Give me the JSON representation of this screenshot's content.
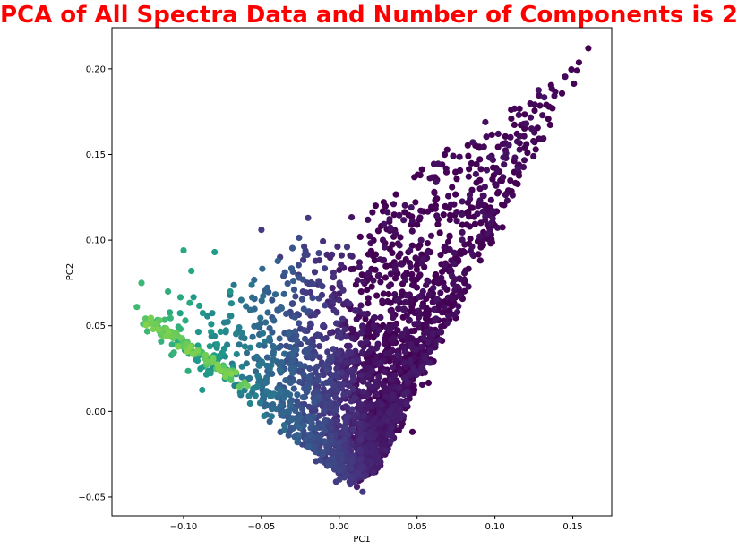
{
  "chart_data": {
    "type": "scatter",
    "title": "PCA of All Spectra Data and Number of Components is 2",
    "title_color": "#ff0000",
    "xlabel": "PC1",
    "ylabel": "PC2",
    "xlim": [
      -0.146,
      0.175
    ],
    "ylim": [
      -0.061,
      0.224
    ],
    "xticks": [
      -0.1,
      -0.05,
      0.0,
      0.05,
      0.1,
      0.15
    ],
    "xtick_labels": [
      "−0.10",
      "−0.05",
      "0.00",
      "0.05",
      "0.10",
      "0.15"
    ],
    "yticks": [
      -0.05,
      0.0,
      0.05,
      0.1,
      0.15,
      0.2
    ],
    "ytick_labels": [
      "−0.05",
      "0.00",
      "0.05",
      "0.10",
      "0.15",
      "0.20"
    ],
    "grid": false,
    "colormap": "viridis",
    "colormap_stops": [
      "#440154",
      "#46327e",
      "#365c8d",
      "#277f8e",
      "#1fa187",
      "#4ac16d",
      "#a0da39"
    ],
    "point_count": 2600,
    "boundary": {
      "apex": [
        0.015,
        -0.047
      ],
      "left_tip": [
        -0.13,
        0.058
      ],
      "right_tip": [
        0.16,
        0.212
      ]
    },
    "sample_points": [
      [
        -0.13,
        0.061
      ],
      [
        -0.127,
        0.075
      ],
      [
        -0.11,
        0.07
      ],
      [
        -0.1,
        0.094
      ],
      [
        -0.095,
        0.082
      ],
      [
        -0.08,
        0.093
      ],
      [
        -0.07,
        0.07
      ],
      [
        -0.05,
        0.106
      ],
      [
        -0.038,
        0.09
      ],
      [
        -0.02,
        0.113
      ],
      [
        0.005,
        0.096
      ],
      [
        0.035,
        0.102
      ],
      [
        0.05,
        0.109
      ],
      [
        0.09,
        0.154
      ],
      [
        0.12,
        0.168
      ],
      [
        0.133,
        0.179
      ],
      [
        0.137,
        0.177
      ],
      [
        0.16,
        0.212
      ],
      [
        0.047,
        -0.012
      ],
      [
        -0.002,
        -0.041
      ],
      [
        0.015,
        -0.047
      ]
    ]
  }
}
